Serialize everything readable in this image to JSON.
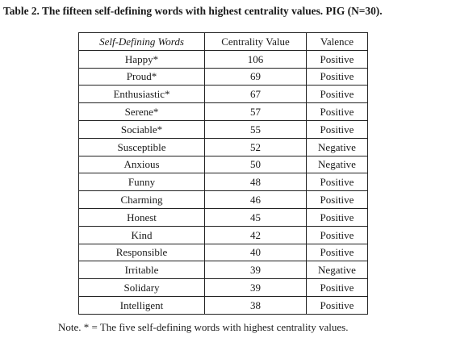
{
  "caption": "Table 2. The fifteen self-defining words with highest centrality values. PIG (N=30).",
  "table": {
    "headers": [
      "Self-Defining Words",
      "Centrality Value",
      "Valence"
    ],
    "rows": [
      [
        "Happy*",
        "106",
        "Positive"
      ],
      [
        "Proud*",
        "69",
        "Positive"
      ],
      [
        "Enthusiastic*",
        "67",
        "Positive"
      ],
      [
        "Serene*",
        "57",
        "Positive"
      ],
      [
        "Sociable*",
        "55",
        "Positive"
      ],
      [
        "Susceptible",
        "52",
        "Negative"
      ],
      [
        "Anxious",
        "50",
        "Negative"
      ],
      [
        "Funny",
        "48",
        "Positive"
      ],
      [
        "Charming",
        "46",
        "Positive"
      ],
      [
        "Honest",
        "45",
        "Positive"
      ],
      [
        "Kind",
        "42",
        "Positive"
      ],
      [
        "Responsible",
        "40",
        "Positive"
      ],
      [
        "Irritable",
        "39",
        "Negative"
      ],
      [
        "Solidary",
        "39",
        "Positive"
      ],
      [
        "Intelligent",
        "38",
        "Positive"
      ]
    ]
  },
  "note": "Note. * = The five self-defining words with highest centrality values."
}
